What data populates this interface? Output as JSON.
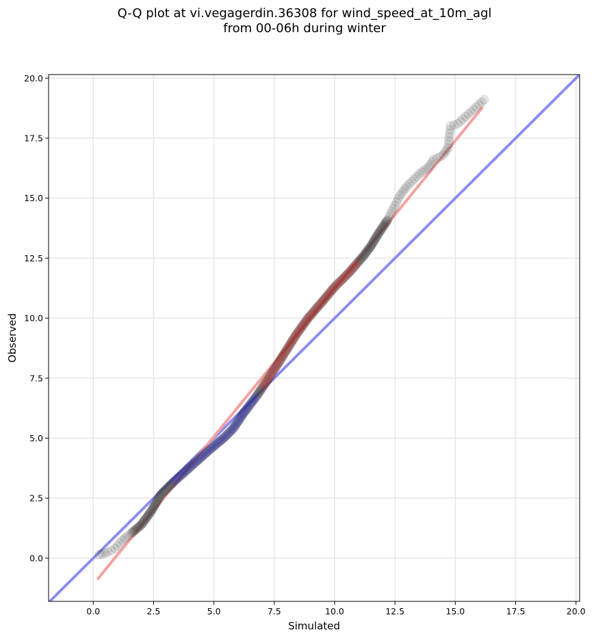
{
  "chart_data": {
    "type": "scatter",
    "title_lines": [
      "Q-Q plot at vi.vegagerdin.36308 for wind_speed_at_10m_agl",
      "from 00-06h during winter"
    ],
    "xlabel": "Simulated",
    "ylabel": "Observed",
    "xlim": [
      -1.85,
      20.15
    ],
    "ylim": [
      -1.8,
      20.15
    ],
    "x_ticks": [
      0.0,
      2.5,
      5.0,
      7.5,
      10.0,
      12.5,
      15.0,
      17.5,
      20.0
    ],
    "y_ticks": [
      0.0,
      2.5,
      5.0,
      7.5,
      10.0,
      12.5,
      15.0,
      17.5,
      20.0
    ],
    "x_tick_labels": [
      "0.0",
      "2.5",
      "5.0",
      "7.5",
      "10.0",
      "12.5",
      "15.0",
      "17.5",
      "20.0"
    ],
    "y_tick_labels": [
      "0.0",
      "2.5",
      "5.0",
      "7.5",
      "10.0",
      "12.5",
      "15.0",
      "17.5",
      "20.0"
    ],
    "grid": true,
    "reference_lines": [
      {
        "kind": "identity",
        "color": "#8c8cf0",
        "points": [
          [
            -1.85,
            -1.85
          ],
          [
            20.15,
            20.15
          ]
        ]
      },
      {
        "kind": "fit",
        "color": "#f5a0a0",
        "points": [
          [
            0.2,
            -0.85
          ],
          [
            16.1,
            18.75
          ]
        ]
      }
    ],
    "quantile_curve": [
      [
        0.25,
        0.15
      ],
      [
        0.6,
        0.25
      ],
      [
        0.9,
        0.4
      ],
      [
        1.2,
        0.75
      ],
      [
        1.6,
        1.05
      ],
      [
        2.0,
        1.4
      ],
      [
        2.4,
        1.95
      ],
      [
        2.8,
        2.65
      ],
      [
        3.3,
        3.15
      ],
      [
        3.8,
        3.6
      ],
      [
        4.3,
        4.05
      ],
      [
        4.8,
        4.5
      ],
      [
        5.4,
        5.0
      ],
      [
        5.8,
        5.4
      ],
      [
        6.2,
        6.0
      ],
      [
        6.8,
        6.8
      ],
      [
        7.4,
        7.7
      ],
      [
        7.9,
        8.5
      ],
      [
        8.4,
        9.3
      ],
      [
        8.9,
        10.0
      ],
      [
        9.5,
        10.7
      ],
      [
        10.0,
        11.3
      ],
      [
        10.6,
        11.9
      ],
      [
        11.2,
        12.6
      ],
      [
        11.5,
        13.0
      ],
      [
        11.8,
        13.5
      ],
      [
        12.2,
        14.1
      ],
      [
        12.5,
        14.7
      ],
      [
        12.7,
        15.1
      ],
      [
        13.0,
        15.5
      ],
      [
        13.3,
        15.8
      ],
      [
        13.5,
        16.0
      ],
      [
        13.9,
        16.3
      ],
      [
        14.1,
        16.6
      ],
      [
        14.5,
        16.8
      ],
      [
        14.7,
        17.1
      ],
      [
        14.8,
        18.0
      ],
      [
        15.1,
        18.1
      ],
      [
        16.2,
        19.1
      ]
    ],
    "marker_color": "#333333",
    "accent_low_color": "#1e1e8c",
    "accent_high_color": "#8c1e1e"
  }
}
